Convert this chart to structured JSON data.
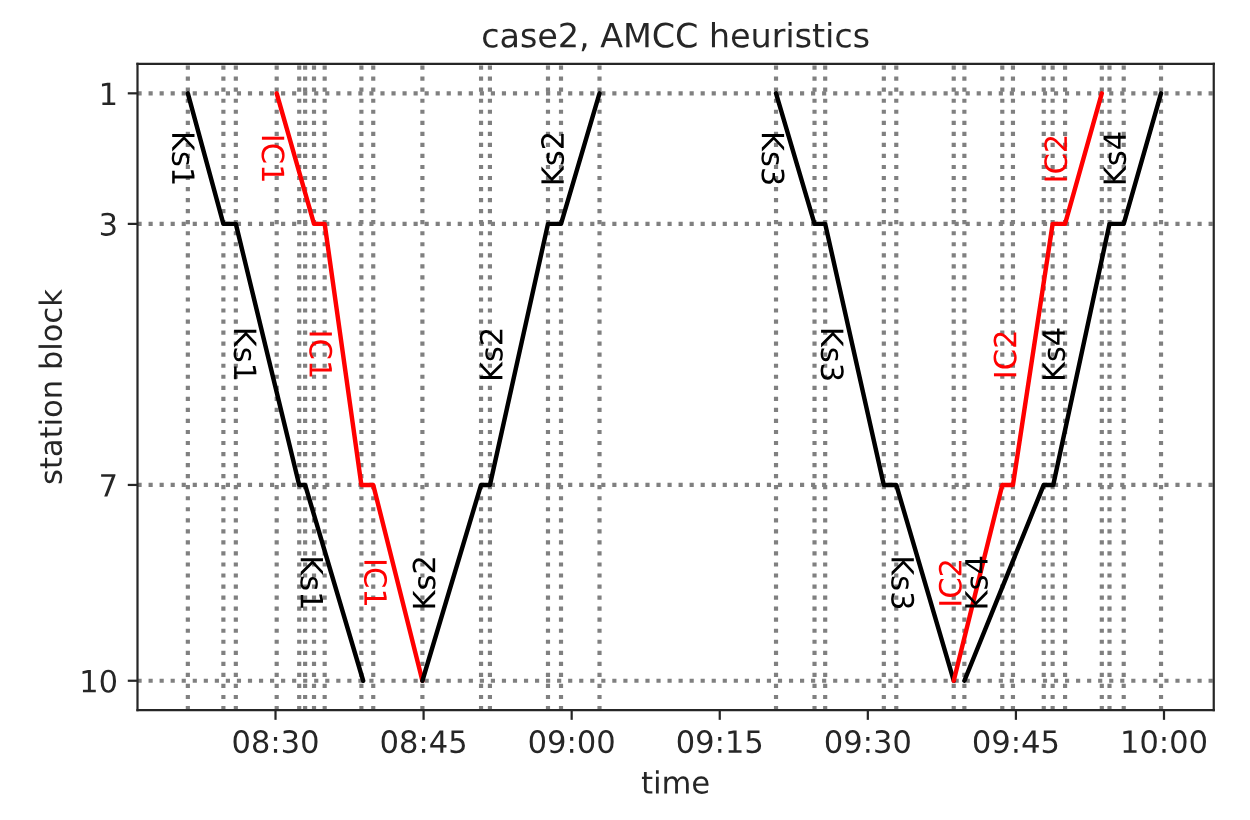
{
  "chart_data": {
    "type": "line",
    "title": "case2, AMCC heuristics",
    "xlabel": "time",
    "ylabel": "station block",
    "xlim": [
      8.267,
      10.084
    ],
    "xticks": [
      {
        "value": 8.5,
        "label": "08:30"
      },
      {
        "value": 8.75,
        "label": "08:45"
      },
      {
        "value": 9.0,
        "label": "09:00"
      },
      {
        "value": 9.25,
        "label": "09:15"
      },
      {
        "value": 9.5,
        "label": "09:30"
      },
      {
        "value": 9.75,
        "label": "09:45"
      },
      {
        "value": 10.0,
        "label": "10:00"
      }
    ],
    "ylim": [
      10.45,
      0.55
    ],
    "yticks": [
      1,
      3,
      7,
      10
    ],
    "grid": "y",
    "legend": false,
    "marker": "none",
    "line_style": "solid",
    "series": [
      {
        "name": "Ks1",
        "color": "#000000",
        "x": [
          8.352,
          8.412,
          8.433,
          8.54,
          8.55,
          8.648
        ],
        "values": [
          1,
          3,
          3,
          7,
          7,
          10
        ]
      },
      {
        "name": "IC1",
        "color": "#ff0000",
        "x": [
          8.502,
          8.565,
          8.583,
          8.645,
          8.665,
          8.748
        ],
        "values": [
          1,
          3,
          3,
          7,
          7,
          10
        ]
      },
      {
        "name": "Ks2",
        "color": "#000000",
        "x": [
          8.748,
          8.847,
          8.862,
          8.96,
          8.982,
          9.047
        ],
        "values": [
          10,
          7,
          7,
          3,
          3,
          1
        ]
      },
      {
        "name": "Ks3",
        "color": "#000000",
        "x": [
          9.345,
          9.41,
          9.428,
          9.527,
          9.548,
          9.645
        ],
        "values": [
          1,
          3,
          3,
          7,
          7,
          10
        ]
      },
      {
        "name": "IC2",
        "color": "#ff0000",
        "x": [
          9.645,
          9.727,
          9.745,
          9.812,
          9.833,
          9.895
        ],
        "values": [
          10,
          7,
          7,
          3,
          3,
          1
        ]
      },
      {
        "name": "Ks4",
        "color": "#000000",
        "x": [
          9.663,
          9.797,
          9.813,
          9.908,
          9.932,
          9.995
        ],
        "values": [
          10,
          7,
          7,
          3,
          3,
          1
        ]
      }
    ],
    "ref_lines": [
      {
        "axis": "x",
        "value": 8.352,
        "color": "#808080",
        "line_style": "dotted"
      },
      {
        "axis": "x",
        "value": 8.412,
        "color": "#808080",
        "line_style": "dotted"
      },
      {
        "axis": "x",
        "value": 8.433,
        "color": "#808080",
        "line_style": "dotted"
      },
      {
        "axis": "x",
        "value": 8.502,
        "color": "#808080",
        "line_style": "dotted"
      },
      {
        "axis": "x",
        "value": 8.54,
        "color": "#808080",
        "line_style": "dotted"
      },
      {
        "axis": "x",
        "value": 8.55,
        "color": "#808080",
        "line_style": "dotted"
      },
      {
        "axis": "x",
        "value": 8.565,
        "color": "#808080",
        "line_style": "dotted"
      },
      {
        "axis": "x",
        "value": 8.583,
        "color": "#808080",
        "line_style": "dotted"
      },
      {
        "axis": "x",
        "value": 8.645,
        "color": "#808080",
        "line_style": "dotted"
      },
      {
        "axis": "x",
        "value": 8.665,
        "color": "#808080",
        "line_style": "dotted"
      },
      {
        "axis": "x",
        "value": 8.748,
        "color": "#808080",
        "line_style": "dotted"
      },
      {
        "axis": "x",
        "value": 8.847,
        "color": "#808080",
        "line_style": "dotted"
      },
      {
        "axis": "x",
        "value": 8.862,
        "color": "#808080",
        "line_style": "dotted"
      },
      {
        "axis": "x",
        "value": 8.96,
        "color": "#808080",
        "line_style": "dotted"
      },
      {
        "axis": "x",
        "value": 8.982,
        "color": "#808080",
        "line_style": "dotted"
      },
      {
        "axis": "x",
        "value": 9.047,
        "color": "#808080",
        "line_style": "dotted"
      },
      {
        "axis": "x",
        "value": 9.345,
        "color": "#808080",
        "line_style": "dotted"
      },
      {
        "axis": "x",
        "value": 9.41,
        "color": "#808080",
        "line_style": "dotted"
      },
      {
        "axis": "x",
        "value": 9.428,
        "color": "#808080",
        "line_style": "dotted"
      },
      {
        "axis": "x",
        "value": 9.527,
        "color": "#808080",
        "line_style": "dotted"
      },
      {
        "axis": "x",
        "value": 9.548,
        "color": "#808080",
        "line_style": "dotted"
      },
      {
        "axis": "x",
        "value": 9.645,
        "color": "#808080",
        "line_style": "dotted"
      },
      {
        "axis": "x",
        "value": 9.663,
        "color": "#808080",
        "line_style": "dotted"
      },
      {
        "axis": "x",
        "value": 9.727,
        "color": "#808080",
        "line_style": "dotted"
      },
      {
        "axis": "x",
        "value": 9.745,
        "color": "#808080",
        "line_style": "dotted"
      },
      {
        "axis": "x",
        "value": 9.797,
        "color": "#808080",
        "line_style": "dotted"
      },
      {
        "axis": "x",
        "value": 9.812,
        "color": "#808080",
        "line_style": "dotted"
      },
      {
        "axis": "x",
        "value": 9.833,
        "color": "#808080",
        "line_style": "dotted"
      },
      {
        "axis": "x",
        "value": 9.895,
        "color": "#808080",
        "line_style": "dotted"
      },
      {
        "axis": "x",
        "value": 9.908,
        "color": "#808080",
        "line_style": "dotted"
      },
      {
        "axis": "x",
        "value": 9.932,
        "color": "#808080",
        "line_style": "dotted"
      },
      {
        "axis": "x",
        "value": 9.995,
        "color": "#808080",
        "line_style": "dotted"
      }
    ]
  }
}
